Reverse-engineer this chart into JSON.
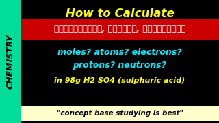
{
  "bg_color": "#000000",
  "sidebar_color": "#00dd99",
  "sidebar_text": "CHEMISTRY",
  "sidebar_text_color": "#000000",
  "title_text": "How to Calculate",
  "title_color": "#ffff00",
  "red_banner_color": "#cc0000",
  "telugu_text": "హైడ్రోజెన్, సల్ఫర్, ఆక్సిజెన్",
  "telugu_text_color": "#ffffff",
  "cyan_line1": "moles? atoms? electrons?",
  "cyan_line2": "protons? neutrons?",
  "cyan_color": "#00eeff",
  "yellow_line_pre": "in 98g H",
  "yellow_line_sub": "2",
  "yellow_line_mid": " SO",
  "yellow_line_sub2": "4",
  "yellow_line_post": " (sulphuric acid)",
  "yellow_color": "#ffff00",
  "bottom_bg": "#ffffcc",
  "bottom_text": "\"concept base studying is best\"",
  "bottom_text_color": "#000000"
}
